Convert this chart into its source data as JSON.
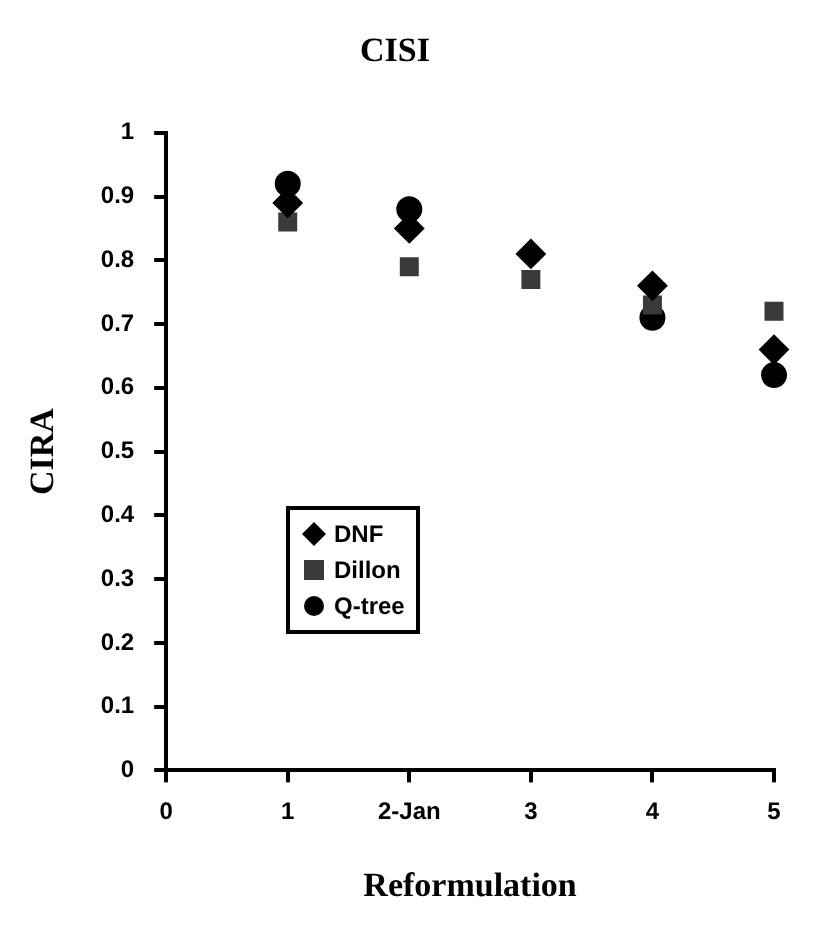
{
  "chart_data": {
    "type": "scatter",
    "title": "CISI",
    "xlabel": "Reformulation",
    "ylabel": "CIRA",
    "x": [
      1,
      2,
      3,
      4,
      5
    ],
    "series": [
      {
        "name": "DNF",
        "color": "#000000",
        "marker": "diamond",
        "values": [
          0.89,
          0.85,
          0.81,
          0.76,
          0.66
        ]
      },
      {
        "name": "Dillon",
        "color": "#3a3a3a",
        "marker": "square",
        "values": [
          0.86,
          0.79,
          0.77,
          0.73,
          0.72
        ]
      },
      {
        "name": "Q-tree",
        "color": "#000000",
        "marker": "circle",
        "values": [
          0.92,
          0.88,
          null,
          0.71,
          0.62
        ]
      }
    ],
    "xlim": [
      0,
      5
    ],
    "xticks": [
      0,
      1,
      {
        "value": 2,
        "label": "2-Jan"
      },
      3,
      4,
      5
    ],
    "ylim": [
      0,
      1
    ],
    "yticks": [
      0,
      0.1,
      0.2,
      0.3,
      0.4,
      0.5,
      0.6,
      0.7,
      0.8,
      0.9,
      1
    ],
    "grid": false,
    "legend": "left"
  }
}
